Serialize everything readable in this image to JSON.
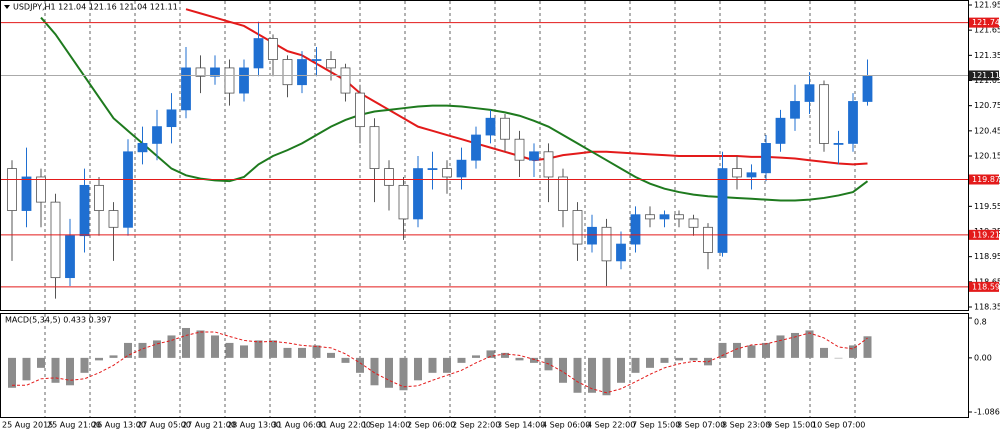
{
  "chart_data": {
    "type": "candlestick",
    "title": "USDJPY,H1  121.04 121.16 121.04 121.11",
    "open": [
      120.0,
      119.5,
      119.9,
      119.6,
      118.7,
      119.2,
      119.8,
      119.5,
      119.3,
      120.2,
      120.3,
      120.5,
      120.7,
      121.2,
      121.1,
      121.2,
      120.9,
      121.2,
      121.55,
      121.3,
      121.0,
      121.3,
      121.3,
      121.2,
      120.9,
      120.5,
      120.0,
      119.8,
      119.4,
      120.0,
      120.0,
      119.9,
      120.1,
      120.4,
      120.6,
      120.35,
      120.1,
      120.2,
      119.9,
      119.5,
      119.1,
      119.3,
      118.9,
      119.1,
      119.45,
      119.4,
      119.45,
      119.4,
      119.3,
      119.0,
      120.0,
      119.9,
      119.95,
      120.3,
      120.6,
      120.8,
      121.0,
      120.3,
      120.3,
      120.8
    ],
    "high": [
      120.1,
      120.25,
      120.0,
      119.7,
      119.4,
      120.0,
      119.9,
      119.6,
      120.35,
      120.5,
      120.7,
      120.9,
      121.45,
      121.35,
      121.35,
      121.3,
      121.3,
      121.75,
      121.6,
      121.35,
      121.4,
      121.45,
      121.4,
      121.25,
      121.0,
      120.6,
      120.1,
      119.9,
      120.15,
      120.2,
      120.1,
      120.25,
      120.5,
      120.7,
      120.65,
      120.45,
      120.3,
      120.3,
      120.0,
      119.6,
      119.45,
      119.4,
      119.25,
      119.55,
      119.55,
      119.5,
      119.5,
      119.45,
      119.35,
      120.2,
      120.15,
      120.05,
      120.4,
      120.7,
      121.0,
      121.15,
      121.05,
      120.45,
      120.9,
      121.3
    ],
    "low": [
      118.9,
      119.3,
      119.3,
      118.45,
      118.6,
      119.0,
      119.2,
      118.9,
      119.2,
      120.05,
      120.1,
      120.3,
      120.6,
      120.9,
      121.0,
      120.75,
      120.8,
      121.1,
      121.1,
      120.85,
      120.9,
      121.1,
      121.05,
      120.8,
      120.3,
      119.6,
      119.5,
      119.15,
      119.3,
      119.75,
      119.7,
      119.75,
      120.0,
      120.3,
      120.2,
      119.9,
      119.9,
      119.6,
      119.3,
      118.9,
      119.0,
      118.6,
      118.8,
      119.0,
      119.3,
      119.3,
      119.3,
      119.2,
      118.8,
      118.95,
      119.75,
      119.75,
      119.85,
      120.2,
      120.45,
      120.65,
      120.2,
      120.05,
      120.2,
      120.75
    ],
    "close": [
      119.5,
      119.9,
      119.6,
      118.7,
      119.2,
      119.8,
      119.5,
      119.3,
      120.2,
      120.3,
      120.5,
      120.7,
      121.2,
      121.1,
      121.2,
      120.9,
      121.2,
      121.55,
      121.3,
      121.0,
      121.3,
      121.3,
      121.2,
      120.9,
      120.5,
      120.0,
      119.8,
      119.4,
      120.0,
      120.0,
      119.9,
      120.1,
      120.4,
      120.6,
      120.35,
      120.1,
      120.2,
      119.9,
      119.5,
      119.1,
      119.3,
      118.9,
      119.1,
      119.45,
      119.4,
      119.45,
      119.4,
      119.3,
      119.0,
      120.0,
      119.9,
      119.95,
      120.3,
      120.6,
      120.8,
      121.0,
      120.3,
      120.3,
      120.8,
      121.11
    ],
    "up_color": "#1f6fd1",
    "down_color": "#ffffff",
    "ma_series": [
      {
        "color": "#e31a1a",
        "values": [
          null,
          null,
          null,
          null,
          null,
          null,
          null,
          null,
          null,
          null,
          null,
          null,
          121.9,
          121.85,
          121.8,
          121.75,
          121.7,
          121.6,
          121.5,
          121.4,
          121.35,
          121.25,
          121.15,
          121.05,
          120.9,
          120.8,
          120.7,
          120.6,
          120.5,
          120.45,
          120.4,
          120.35,
          120.3,
          120.25,
          120.2,
          120.15,
          120.1,
          120.12,
          120.16,
          120.18,
          120.2,
          120.2,
          120.19,
          120.18,
          120.17,
          120.16,
          120.15,
          120.15,
          120.15,
          120.15,
          120.15,
          120.14,
          120.14,
          120.13,
          120.12,
          120.1,
          120.08,
          120.06,
          120.05,
          120.06
        ]
      },
      {
        "color": "#1e7a1e",
        "values": [
          null,
          null,
          121.8,
          121.6,
          121.35,
          121.1,
          120.85,
          120.6,
          120.45,
          120.3,
          120.15,
          120.0,
          119.92,
          119.88,
          119.86,
          119.85,
          119.9,
          120.05,
          120.15,
          120.22,
          120.3,
          120.4,
          120.5,
          120.58,
          120.64,
          120.68,
          120.7,
          120.72,
          120.74,
          120.75,
          120.75,
          120.74,
          120.72,
          120.7,
          120.67,
          120.63,
          120.57,
          120.5,
          120.4,
          120.3,
          120.2,
          120.1,
          120.0,
          119.9,
          119.82,
          119.76,
          119.72,
          119.69,
          119.67,
          119.66,
          119.65,
          119.64,
          119.63,
          119.62,
          119.62,
          119.63,
          119.65,
          119.68,
          119.72,
          119.85
        ]
      }
    ],
    "ylim": [
      118.35,
      121.95
    ],
    "yticks": [
      121.95,
      121.65,
      121.35,
      121.05,
      120.75,
      120.45,
      120.15,
      119.85,
      119.55,
      119.25,
      118.95,
      118.65,
      118.35
    ],
    "levels": [
      121.74,
      119.87,
      119.21,
      118.59
    ],
    "level_color": "#e31a1a",
    "last_price": 121.11,
    "time_labels": [
      "25 Aug 2015",
      "25 Aug 21:00",
      "26 Aug 13:00",
      "27 Aug 05:00",
      "27 Aug 21:00",
      "28 Aug 13:00",
      "31 Aug 06:00",
      "31 Aug 22:00",
      "1 Sep 14:00",
      "2 Sep 06:00",
      "2 Sep 22:00",
      "3 Sep 14:00",
      "4 Sep 06:00",
      "4 Sep 22:00",
      "7 Sep 15:00",
      "8 Sep 07:00",
      "8 Sep 23:00",
      "9 Sep 15:00",
      "10 Sep 07:00"
    ],
    "grid": true,
    "macd": {
      "title": "MACD(5,34,5) 0.433 0.397",
      "histogram": [
        -0.6,
        -0.45,
        -0.2,
        -0.5,
        -0.55,
        -0.3,
        -0.05,
        0.05,
        0.3,
        0.3,
        0.35,
        0.45,
        0.6,
        0.55,
        0.45,
        0.3,
        0.25,
        0.35,
        0.35,
        0.2,
        0.2,
        0.25,
        0.1,
        -0.1,
        -0.3,
        -0.55,
        -0.6,
        -0.65,
        -0.45,
        -0.3,
        -0.3,
        -0.1,
        0.05,
        0.15,
        0.1,
        -0.05,
        -0.1,
        -0.25,
        -0.5,
        -0.7,
        -0.7,
        -0.75,
        -0.5,
        -0.3,
        -0.2,
        -0.1,
        -0.05,
        -0.05,
        -0.15,
        0.3,
        0.3,
        0.25,
        0.3,
        0.45,
        0.5,
        0.55,
        0.2,
        0.0,
        0.25,
        0.433
      ],
      "signal": [
        -0.55,
        -0.55,
        -0.42,
        -0.4,
        -0.45,
        -0.42,
        -0.3,
        -0.15,
        0.05,
        0.18,
        0.28,
        0.35,
        0.45,
        0.52,
        0.52,
        0.43,
        0.35,
        0.32,
        0.33,
        0.3,
        0.25,
        0.23,
        0.2,
        0.08,
        -0.1,
        -0.3,
        -0.45,
        -0.58,
        -0.56,
        -0.45,
        -0.35,
        -0.25,
        -0.1,
        0.03,
        0.08,
        0.05,
        -0.03,
        -0.12,
        -0.28,
        -0.48,
        -0.62,
        -0.7,
        -0.62,
        -0.48,
        -0.33,
        -0.2,
        -0.12,
        -0.07,
        -0.08,
        0.05,
        0.18,
        0.26,
        0.28,
        0.35,
        0.42,
        0.5,
        0.4,
        0.22,
        0.18,
        0.397
      ],
      "hist_color": "#8c8c8c",
      "signal_color": "#e31a1a",
      "y2lim": [
        -1.086,
        0.8
      ],
      "y2ticks": [
        0.8,
        {
          "value": 0,
          "label": "0.00"
        },
        -1.086
      ]
    }
  }
}
